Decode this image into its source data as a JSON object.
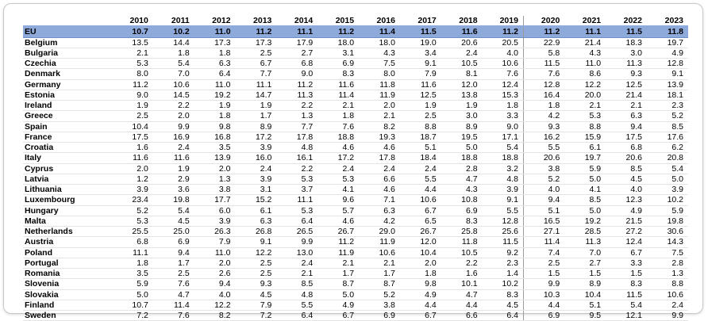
{
  "table": {
    "columns": [
      "2010",
      "2011",
      "2012",
      "2013",
      "2014",
      "2015",
      "2016",
      "2017",
      "2018",
      "2019",
      "2020",
      "2021",
      "2022",
      "2023"
    ],
    "rows": [
      [
        "EU",
        "10.7",
        "10.2",
        "11.0",
        "11.2",
        "11.1",
        "11.2",
        "11.4",
        "11.5",
        "11.6",
        "11.2",
        "11.2",
        "11.1",
        "11.5",
        "11.8"
      ],
      [
        "Belgium",
        "13.5",
        "14.4",
        "17.3",
        "17.3",
        "17.9",
        "18.0",
        "18.0",
        "19.0",
        "20.6",
        "20.5",
        "22.9",
        "21.4",
        "18.3",
        "19.7"
      ],
      [
        "Bulgaria",
        "2.1",
        "1.8",
        "1.8",
        "2.5",
        "2.7",
        "3.1",
        "4.3",
        "3.4",
        "2.4",
        "4.0",
        "5.8",
        "4.3",
        "3.0",
        "4.9"
      ],
      [
        "Czechia",
        "5.3",
        "5.4",
        "6.3",
        "6.7",
        "6.8",
        "6.9",
        "7.5",
        "9.1",
        "10.5",
        "10.6",
        "11.5",
        "11.0",
        "11.3",
        "12.8"
      ],
      [
        "Denmark",
        "8.0",
        "7.0",
        "6.4",
        "7.7",
        "9.0",
        "8.3",
        "8.0",
        "7.9",
        "8.1",
        "7.6",
        "7.6",
        "8.6",
        "9.3",
        "9.1"
      ],
      [
        "Germany",
        "11.2",
        "10.6",
        "11.0",
        "11.1",
        "11.2",
        "11.6",
        "11.8",
        "11.6",
        "12.0",
        "12.4",
        "12.8",
        "12.2",
        "12.5",
        "13.9"
      ],
      [
        "Estonia",
        "9.0",
        "14.5",
        "19.2",
        "14.7",
        "11.3",
        "11.4",
        "11.9",
        "12.5",
        "13.8",
        "15.3",
        "16.4",
        "20.0",
        "21.4",
        "18.1"
      ],
      [
        "Ireland",
        "1.9",
        "2.2",
        "1.9",
        "1.9",
        "2.2",
        "2.1",
        "2.0",
        "1.9",
        "1.9",
        "1.8",
        "1.8",
        "2.1",
        "2.1",
        "2.3"
      ],
      [
        "Greece",
        "2.5",
        "2.0",
        "1.8",
        "1.7",
        "1.3",
        "1.8",
        "2.1",
        "2.5",
        "3.0",
        "3.3",
        "4.2",
        "5.3",
        "6.3",
        "5.2"
      ],
      [
        "Spain",
        "10.4",
        "9.9",
        "9.8",
        "8.9",
        "7.7",
        "7.6",
        "8.2",
        "8.8",
        "8.9",
        "9.0",
        "9.3",
        "8.8",
        "9.4",
        "8.5"
      ],
      [
        "France",
        "17.5",
        "16.9",
        "16.8",
        "17.2",
        "17.8",
        "18.8",
        "19.3",
        "18.7",
        "19.5",
        "17.1",
        "16.2",
        "15.9",
        "17.5",
        "17.6"
      ],
      [
        "Croatia",
        "1.6",
        "2.4",
        "3.5",
        "3.9",
        "4.8",
        "4.6",
        "4.6",
        "5.1",
        "5.0",
        "5.4",
        "5.5",
        "6.1",
        "6.8",
        "6.2"
      ],
      [
        "Italy",
        "11.6",
        "11.6",
        "13.9",
        "16.0",
        "16.1",
        "17.2",
        "17.8",
        "18.4",
        "18.8",
        "18.8",
        "20.6",
        "19.7",
        "20.6",
        "20.8"
      ],
      [
        "Cyprus",
        "2.0",
        "1.9",
        "2.0",
        "2.4",
        "2.2",
        "2.4",
        "2.4",
        "2.4",
        "2.8",
        "3.2",
        "3.8",
        "5.9",
        "8.5",
        "5.4"
      ],
      [
        "Latvia",
        "1.2",
        "2.9",
        "1.3",
        "3.9",
        "5.3",
        "5.3",
        "6.6",
        "5.5",
        "4.7",
        "4.8",
        "5.2",
        "5.0",
        "4.5",
        "5.0"
      ],
      [
        "Lithuania",
        "3.9",
        "3.6",
        "3.8",
        "3.1",
        "3.7",
        "4.1",
        "4.6",
        "4.4",
        "4.3",
        "3.9",
        "4.0",
        "4.1",
        "4.0",
        "3.9"
      ],
      [
        "Luxembourg",
        "23.4",
        "19.8",
        "17.7",
        "15.2",
        "11.1",
        "9.6",
        "7.1",
        "10.6",
        "10.8",
        "9.1",
        "9.4",
        "8.5",
        "12.3",
        "10.2"
      ],
      [
        "Hungary",
        "5.2",
        "5.4",
        "6.0",
        "6.1",
        "5.3",
        "5.7",
        "6.3",
        "6.7",
        "6.9",
        "5.5",
        "5.1",
        "5.0",
        "4.9",
        "5.9"
      ],
      [
        "Malta",
        "5.3",
        "4.5",
        "3.9",
        "6.3",
        "6.4",
        "4.6",
        "4.2",
        "6.5",
        "8.3",
        "12.8",
        "16.5",
        "19.2",
        "21.5",
        "19.8"
      ],
      [
        "Netherlands",
        "25.5",
        "25.0",
        "26.3",
        "26.8",
        "26.5",
        "26.7",
        "29.0",
        "26.7",
        "25.8",
        "25.6",
        "27.1",
        "28.5",
        "27.2",
        "30.6"
      ],
      [
        "Austria",
        "6.8",
        "6.9",
        "7.9",
        "9.1",
        "9.9",
        "11.2",
        "11.9",
        "12.0",
        "11.8",
        "11.5",
        "11.4",
        "11.3",
        "12.4",
        "14.3"
      ],
      [
        "Poland",
        "11.1",
        "9.4",
        "11.0",
        "12.2",
        "13.0",
        "11.9",
        "10.6",
        "10.4",
        "10.5",
        "9.2",
        "7.4",
        "7.0",
        "6.7",
        "7.5"
      ],
      [
        "Portugal",
        "1.8",
        "1.7",
        "2.0",
        "2.5",
        "2.4",
        "2.1",
        "2.1",
        "2.0",
        "2.2",
        "2.3",
        "2.5",
        "2.7",
        "3.3",
        "2.8"
      ],
      [
        "Romania",
        "3.5",
        "2.5",
        "2.6",
        "2.5",
        "2.1",
        "1.7",
        "1.7",
        "1.8",
        "1.6",
        "1.4",
        "1.5",
        "1.5",
        "1.5",
        "1.3"
      ],
      [
        "Slovenia",
        "5.9",
        "7.6",
        "9.4",
        "9.3",
        "8.5",
        "8.7",
        "8.7",
        "9.8",
        "10.1",
        "10.2",
        "9.9",
        "8.9",
        "8.3",
        "8.8"
      ],
      [
        "Slovakia",
        "5.0",
        "4.7",
        "4.0",
        "4.5",
        "4.8",
        "5.0",
        "5.2",
        "4.9",
        "4.7",
        "8.3",
        "10.3",
        "10.4",
        "11.5",
        "10.6"
      ],
      [
        "Finland",
        "10.7",
        "11.4",
        "12.2",
        "7.9",
        "5.5",
        "4.9",
        "3.8",
        "4.4",
        "4.4",
        "4.5",
        "4.4",
        "5.1",
        "5.4",
        "2.4"
      ],
      [
        "Sweden",
        "7.2",
        "7.6",
        "8.2",
        "7.2",
        "6.4",
        "6.7",
        "6.9",
        "6.7",
        "6.6",
        "6.4",
        "6.9",
        "9.5",
        "12.1",
        "9.9"
      ]
    ]
  }
}
